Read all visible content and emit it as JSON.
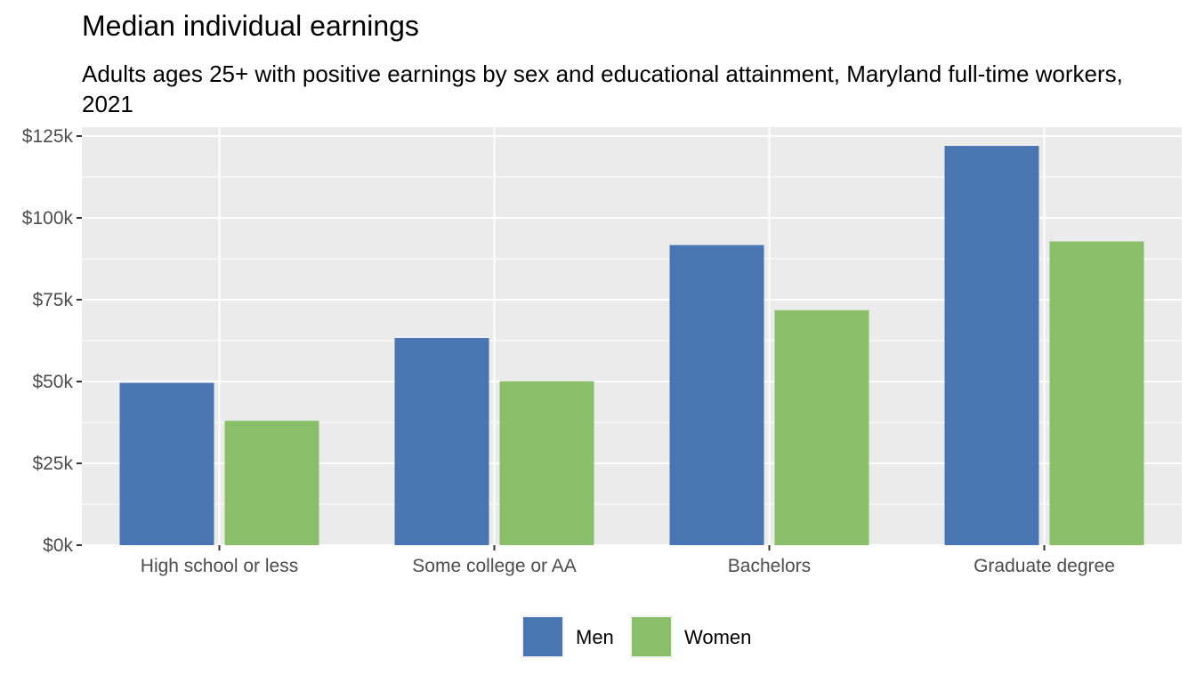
{
  "chart_data": {
    "type": "bar",
    "title": "Median individual earnings",
    "subtitle": "Adults ages 25+ with positive earnings by sex and educational attainment, Maryland full-time workers, 2021",
    "xlabel": "",
    "ylabel": "",
    "categories": [
      "High school or less",
      "Some college or AA",
      "Bachelors",
      "Graduate degree"
    ],
    "series": [
      {
        "name": "Men",
        "color": "#3b6aad",
        "values": [
          49600,
          63300,
          91700,
          122000
        ]
      },
      {
        "name": "Women",
        "color": "#80bb5c",
        "values": [
          38000,
          50100,
          71800,
          92800
        ]
      }
    ],
    "ylim": [
      0,
      125000
    ],
    "yticks": [
      0,
      25000,
      50000,
      75000,
      100000,
      125000
    ],
    "ytick_labels": [
      "$0k",
      "$25k",
      "$50k",
      "$75k",
      "$100k",
      "$125k"
    ],
    "grid": true,
    "legend_position": "bottom"
  }
}
